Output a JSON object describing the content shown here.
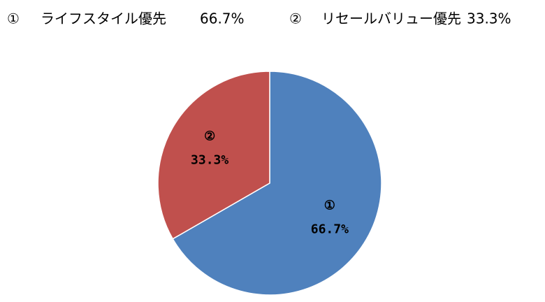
{
  "chart_data": {
    "type": "pie",
    "markers": [
      "①",
      "②"
    ],
    "categories": [
      "ライフスタイル優先",
      "リセールバリュー優先"
    ],
    "values": [
      66.7,
      33.3
    ],
    "value_labels": [
      "66.7%",
      "33.3%"
    ],
    "colors": [
      "#4f81bd",
      "#c0504d"
    ]
  }
}
